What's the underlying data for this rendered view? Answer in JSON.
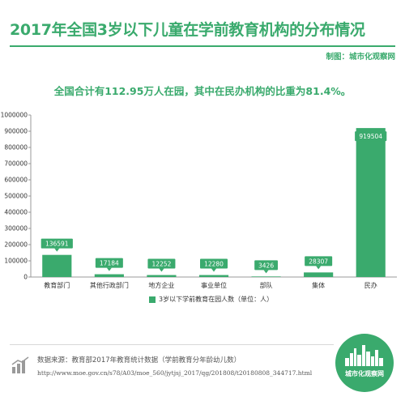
{
  "header": {
    "title": "2017年全国3岁以下儿童在学前教育机构的分布情况",
    "credit": "制图：城市化观察网"
  },
  "summary": "全国合计有112.95万人在园，其中在民办机构的比重为81.4%。",
  "chart_data": {
    "type": "bar",
    "categories": [
      "教育部门",
      "其他行政部门",
      "地方企业",
      "事业单位",
      "部队",
      "集体",
      "民办"
    ],
    "series": [
      {
        "name": "3岁以下学前教育在园人数（单位：人）",
        "values": [
          136591,
          17184,
          12252,
          12280,
          3426,
          28307,
          919504
        ]
      }
    ],
    "ylim": [
      0,
      1000000
    ],
    "yticks": [
      0,
      100000,
      200000,
      300000,
      400000,
      500000,
      600000,
      700000,
      800000,
      900000,
      1000000
    ],
    "legend_position": "bottom",
    "data_labels": true,
    "grid": false,
    "color": "#3aaa6d"
  },
  "legend": {
    "label": "3岁以下学前教育在园人数（单位：人）"
  },
  "footer": {
    "source": "数据来源：教育部2017年教育统计数据（学前教育分年龄幼儿数）",
    "url": "http://www.moe.gov.cn/s78/A03/moe_560/jytjsj_2017/qg/201808/t20180808_344717.html",
    "logo_text": "城市化观察网"
  }
}
